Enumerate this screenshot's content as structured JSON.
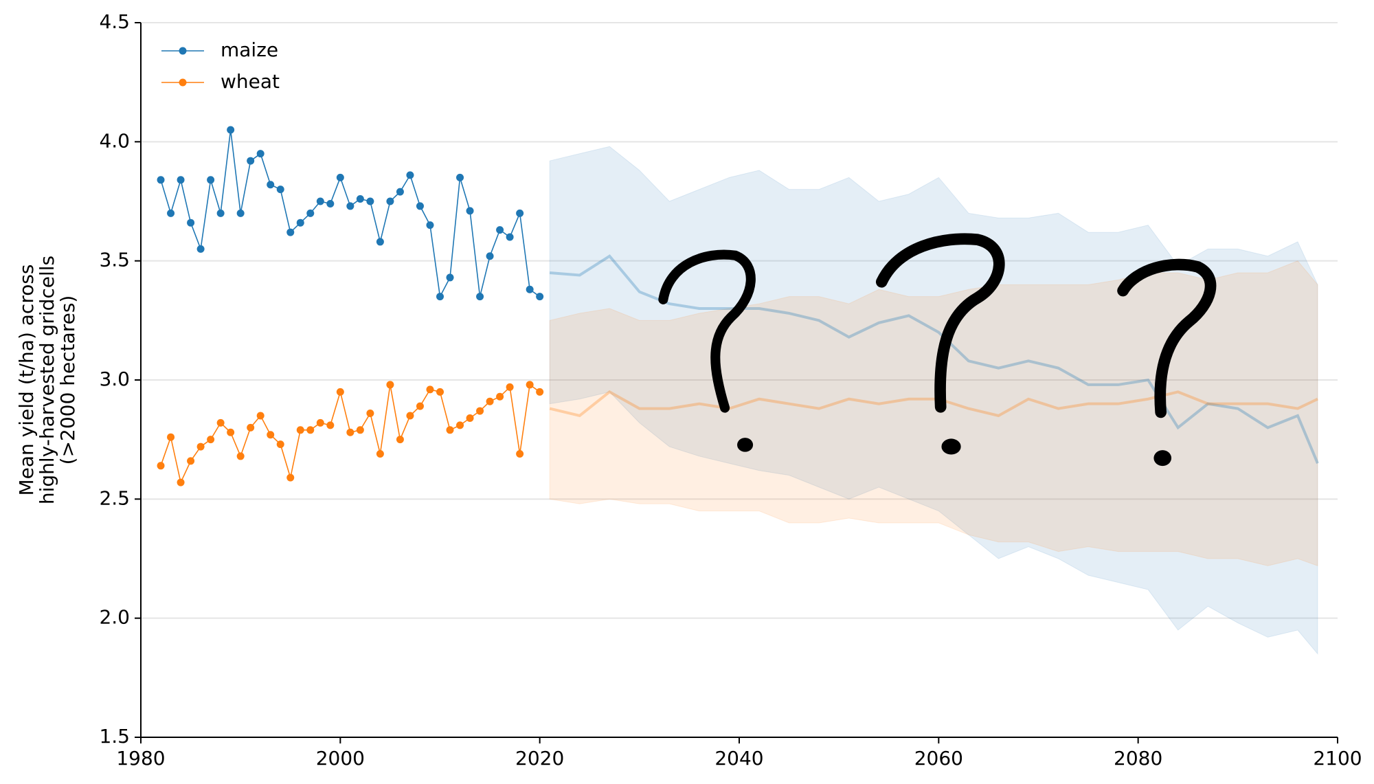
{
  "chart_data": {
    "type": "line",
    "ylabel": [
      "Mean yield (t/ha) across",
      "highly-harvested gridcells",
      "(>2000 hectares)"
    ],
    "x": [
      1982,
      1983,
      1984,
      1985,
      1986,
      1987,
      1988,
      1989,
      1990,
      1991,
      1992,
      1993,
      1994,
      1995,
      1996,
      1997,
      1998,
      1999,
      2000,
      2001,
      2002,
      2003,
      2004,
      2005,
      2006,
      2007,
      2008,
      2009,
      2010,
      2011,
      2012,
      2013,
      2014,
      2015,
      2016,
      2017,
      2018,
      2019,
      2020
    ],
    "projection_x": [
      2021,
      2024,
      2027,
      2030,
      2033,
      2036,
      2039,
      2042,
      2045,
      2048,
      2051,
      2054,
      2057,
      2060,
      2063,
      2066,
      2069,
      2072,
      2075,
      2078,
      2081,
      2084,
      2087,
      2090,
      2093,
      2096,
      2098
    ],
    "series": [
      {
        "name": "maize",
        "color": "#1f77b4",
        "values": [
          3.84,
          3.7,
          3.84,
          3.66,
          3.55,
          3.84,
          3.7,
          4.05,
          3.7,
          3.92,
          3.95,
          3.82,
          3.8,
          3.62,
          3.66,
          3.7,
          3.75,
          3.74,
          3.85,
          3.73,
          3.76,
          3.75,
          3.58,
          3.75,
          3.79,
          3.86,
          3.73,
          3.65,
          3.35,
          3.43,
          3.85,
          3.71,
          3.35,
          3.52,
          3.63,
          3.6,
          3.7,
          3.38,
          3.35
        ],
        "projection": {
          "mean": [
            3.45,
            3.44,
            3.52,
            3.37,
            3.32,
            3.3,
            3.3,
            3.3,
            3.28,
            3.25,
            3.18,
            3.24,
            3.27,
            3.2,
            3.08,
            3.05,
            3.08,
            3.05,
            2.98,
            2.98,
            3.0,
            2.8,
            2.9,
            2.88,
            2.8,
            2.85,
            2.65
          ],
          "upper": [
            3.92,
            3.95,
            3.98,
            3.88,
            3.75,
            3.8,
            3.85,
            3.88,
            3.8,
            3.8,
            3.85,
            3.75,
            3.78,
            3.85,
            3.7,
            3.68,
            3.68,
            3.7,
            3.62,
            3.62,
            3.65,
            3.48,
            3.55,
            3.55,
            3.52,
            3.58,
            3.4
          ],
          "lower": [
            2.9,
            2.92,
            2.95,
            2.82,
            2.72,
            2.68,
            2.65,
            2.62,
            2.6,
            2.55,
            2.5,
            2.55,
            2.5,
            2.45,
            2.35,
            2.25,
            2.3,
            2.25,
            2.18,
            2.15,
            2.12,
            1.95,
            2.05,
            1.98,
            1.92,
            1.95,
            1.85
          ]
        }
      },
      {
        "name": "wheat",
        "color": "#ff7f0e",
        "values": [
          2.64,
          2.76,
          2.57,
          2.66,
          2.72,
          2.75,
          2.82,
          2.78,
          2.68,
          2.8,
          2.85,
          2.77,
          2.73,
          2.59,
          2.79,
          2.79,
          2.82,
          2.81,
          2.95,
          2.78,
          2.79,
          2.86,
          2.69,
          2.98,
          2.75,
          2.85,
          2.89,
          2.96,
          2.95,
          2.79,
          2.81,
          2.84,
          2.87,
          2.91,
          2.93,
          2.97,
          2.69,
          2.98,
          2.95
        ],
        "projection": {
          "mean": [
            2.88,
            2.85,
            2.95,
            2.88,
            2.88,
            2.9,
            2.88,
            2.92,
            2.9,
            2.88,
            2.92,
            2.9,
            2.92,
            2.92,
            2.88,
            2.85,
            2.92,
            2.88,
            2.9,
            2.9,
            2.92,
            2.95,
            2.9,
            2.9,
            2.9,
            2.88,
            2.92
          ],
          "upper": [
            3.25,
            3.28,
            3.3,
            3.25,
            3.25,
            3.28,
            3.3,
            3.32,
            3.35,
            3.35,
            3.32,
            3.38,
            3.35,
            3.35,
            3.38,
            3.4,
            3.4,
            3.4,
            3.4,
            3.42,
            3.45,
            3.45,
            3.42,
            3.45,
            3.45,
            3.5,
            3.4
          ],
          "lower": [
            2.5,
            2.48,
            2.5,
            2.48,
            2.48,
            2.45,
            2.45,
            2.45,
            2.4,
            2.4,
            2.42,
            2.4,
            2.4,
            2.4,
            2.35,
            2.32,
            2.32,
            2.28,
            2.3,
            2.28,
            2.28,
            2.28,
            2.25,
            2.25,
            2.22,
            2.25,
            2.22
          ]
        }
      }
    ],
    "xlim": [
      1980,
      2100
    ],
    "xticks": [
      1980,
      2000,
      2020,
      2040,
      2060,
      2080,
      2100
    ],
    "ylim": [
      1.5,
      4.5
    ],
    "yticks": [
      1.5,
      {
        "value": 2,
        "label": "2.0"
      },
      2.5,
      {
        "value": 3,
        "label": "3.0"
      },
      3.5,
      {
        "value": 4,
        "label": "4.0"
      },
      4.5
    ],
    "grid": true,
    "legend": "upper-left"
  }
}
